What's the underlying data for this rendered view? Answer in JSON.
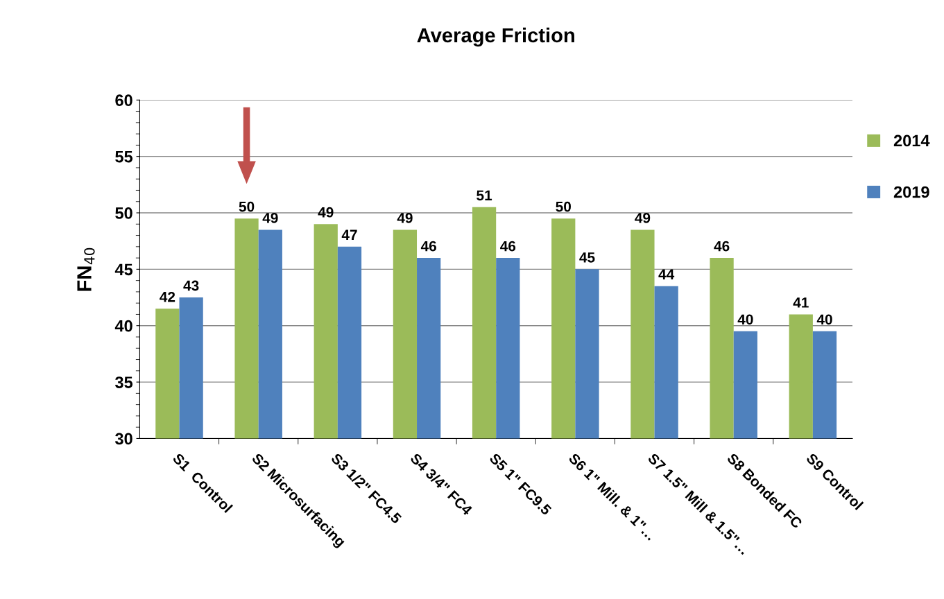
{
  "chart_data": {
    "type": "bar",
    "title": "Average Friction",
    "ylabel": "FN$_{40}$",
    "categories": [
      "S1  Control",
      "S2 Microsurfacing",
      "S3 1/2\" FC4.5",
      "S4 3/4\" FC4",
      "S5 1\" FC9.5",
      "S6 1\" Mill. & 1\"…",
      "S7 1.5\" Mill & 1.5\"…",
      "S8 Bonded FC",
      "S9 Control"
    ],
    "series": [
      {
        "name": "2014",
        "color": "#9bbb59",
        "values": [
          41.5,
          49.5,
          49,
          48.5,
          50.5,
          49.5,
          48.5,
          46,
          41
        ],
        "value_labels": [
          "42",
          "50",
          "49",
          "49",
          "51",
          "50",
          "49",
          "46",
          "41"
        ]
      },
      {
        "name": "2019",
        "color": "#4f81bd",
        "values": [
          42.5,
          48.5,
          47,
          46,
          46,
          45,
          43.5,
          39.5,
          39.5
        ],
        "value_labels": [
          "43",
          "49",
          "47",
          "46",
          "46",
          "45",
          "44",
          "40",
          "40"
        ]
      }
    ],
    "ylim": [
      30,
      60
    ],
    "yticks": [
      30,
      35,
      40,
      45,
      50,
      55,
      60
    ],
    "grid": "y",
    "legend": "right"
  }
}
